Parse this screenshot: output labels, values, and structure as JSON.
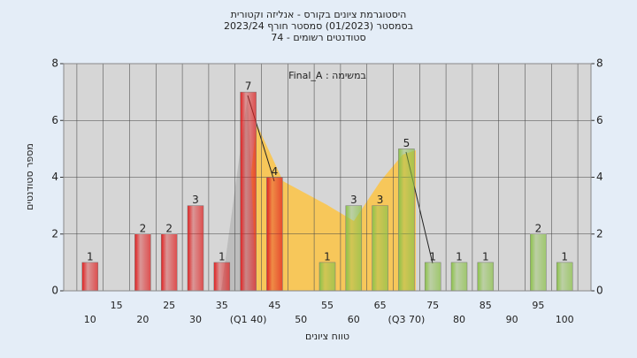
{
  "chart_data": {
    "type": "bar",
    "title": [
      "היסטוגרמת ציונים בקורס - אנליזה וקטורית",
      "בסמסטר  (01/2023)  סמסטר חורף 2023/24",
      "סטודנטים רשומים - 74"
    ],
    "annotation": "Final_A : במשימה",
    "x_label": "טווח ציונים",
    "y_label": "מספר סטודנטים",
    "categories": [
      "10",
      "15",
      "20",
      "25",
      "30",
      "35",
      "(Q1 40)",
      "45",
      "50",
      "55",
      "60",
      "65",
      "(Q3 70)",
      "75",
      "80",
      "85",
      "90",
      "95",
      "100"
    ],
    "values": [
      1,
      0,
      2,
      2,
      3,
      1,
      7,
      4,
      0,
      1,
      3,
      3,
      5,
      1,
      1,
      1,
      0,
      2,
      1
    ],
    "colors": [
      "#e02020",
      "#e02020",
      "#e02020",
      "#e02020",
      "#e02020",
      "#e02020",
      "#e02020",
      "#e02020",
      "#e02020",
      "#8cc24a",
      "#8cc24a",
      "#8cc24a",
      "#8cc24a",
      "#8cc24a",
      "#8cc24a",
      "#8cc24a",
      "#8cc24a",
      "#8cc24a",
      "#8cc24a"
    ],
    "ylim": [
      0,
      8
    ],
    "yticks": [
      0,
      2,
      4,
      6,
      8
    ],
    "grid": true
  }
}
